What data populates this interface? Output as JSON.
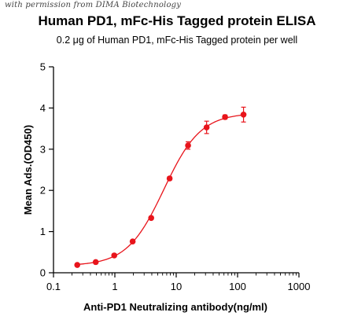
{
  "watermark": "with permission from DIMA Biotechnology",
  "chart_data": {
    "type": "scatter",
    "title": "Human PD1,  mFc-His Tagged protein ELISA",
    "subtitle": "0.2 μg of Human PD1, mFc-His Tagged protein per well",
    "xlabel": "Anti-PD1 Neutralizing antibody(ng/ml)",
    "ylabel": "Mean Ads.(OD450)",
    "x_scale": "log",
    "xlim": [
      0.1,
      1000
    ],
    "ylim": [
      0,
      5
    ],
    "x_ticks": [
      0.1,
      1,
      10,
      100,
      1000
    ],
    "x_tick_labels": [
      "0.1",
      "1",
      "10",
      "100",
      "1000"
    ],
    "y_ticks": [
      0,
      1,
      2,
      3,
      4,
      5
    ],
    "y_tick_labels": [
      "0",
      "1",
      "2",
      "3",
      "4",
      "5"
    ],
    "grid": false,
    "color": "#e8141b",
    "series": [
      {
        "x": [
          0.244,
          0.488,
          0.977,
          1.95,
          3.91,
          7.81,
          15.6,
          31.3,
          62.5,
          125
        ],
        "y": [
          0.19,
          0.26,
          0.42,
          0.76,
          1.33,
          2.29,
          3.09,
          3.53,
          3.78,
          3.84
        ],
        "error": [
          0.02,
          0.02,
          0.03,
          0.03,
          0.04,
          0.04,
          0.09,
          0.15,
          0.05,
          0.18
        ]
      }
    ],
    "fit_curve": "4PL"
  }
}
